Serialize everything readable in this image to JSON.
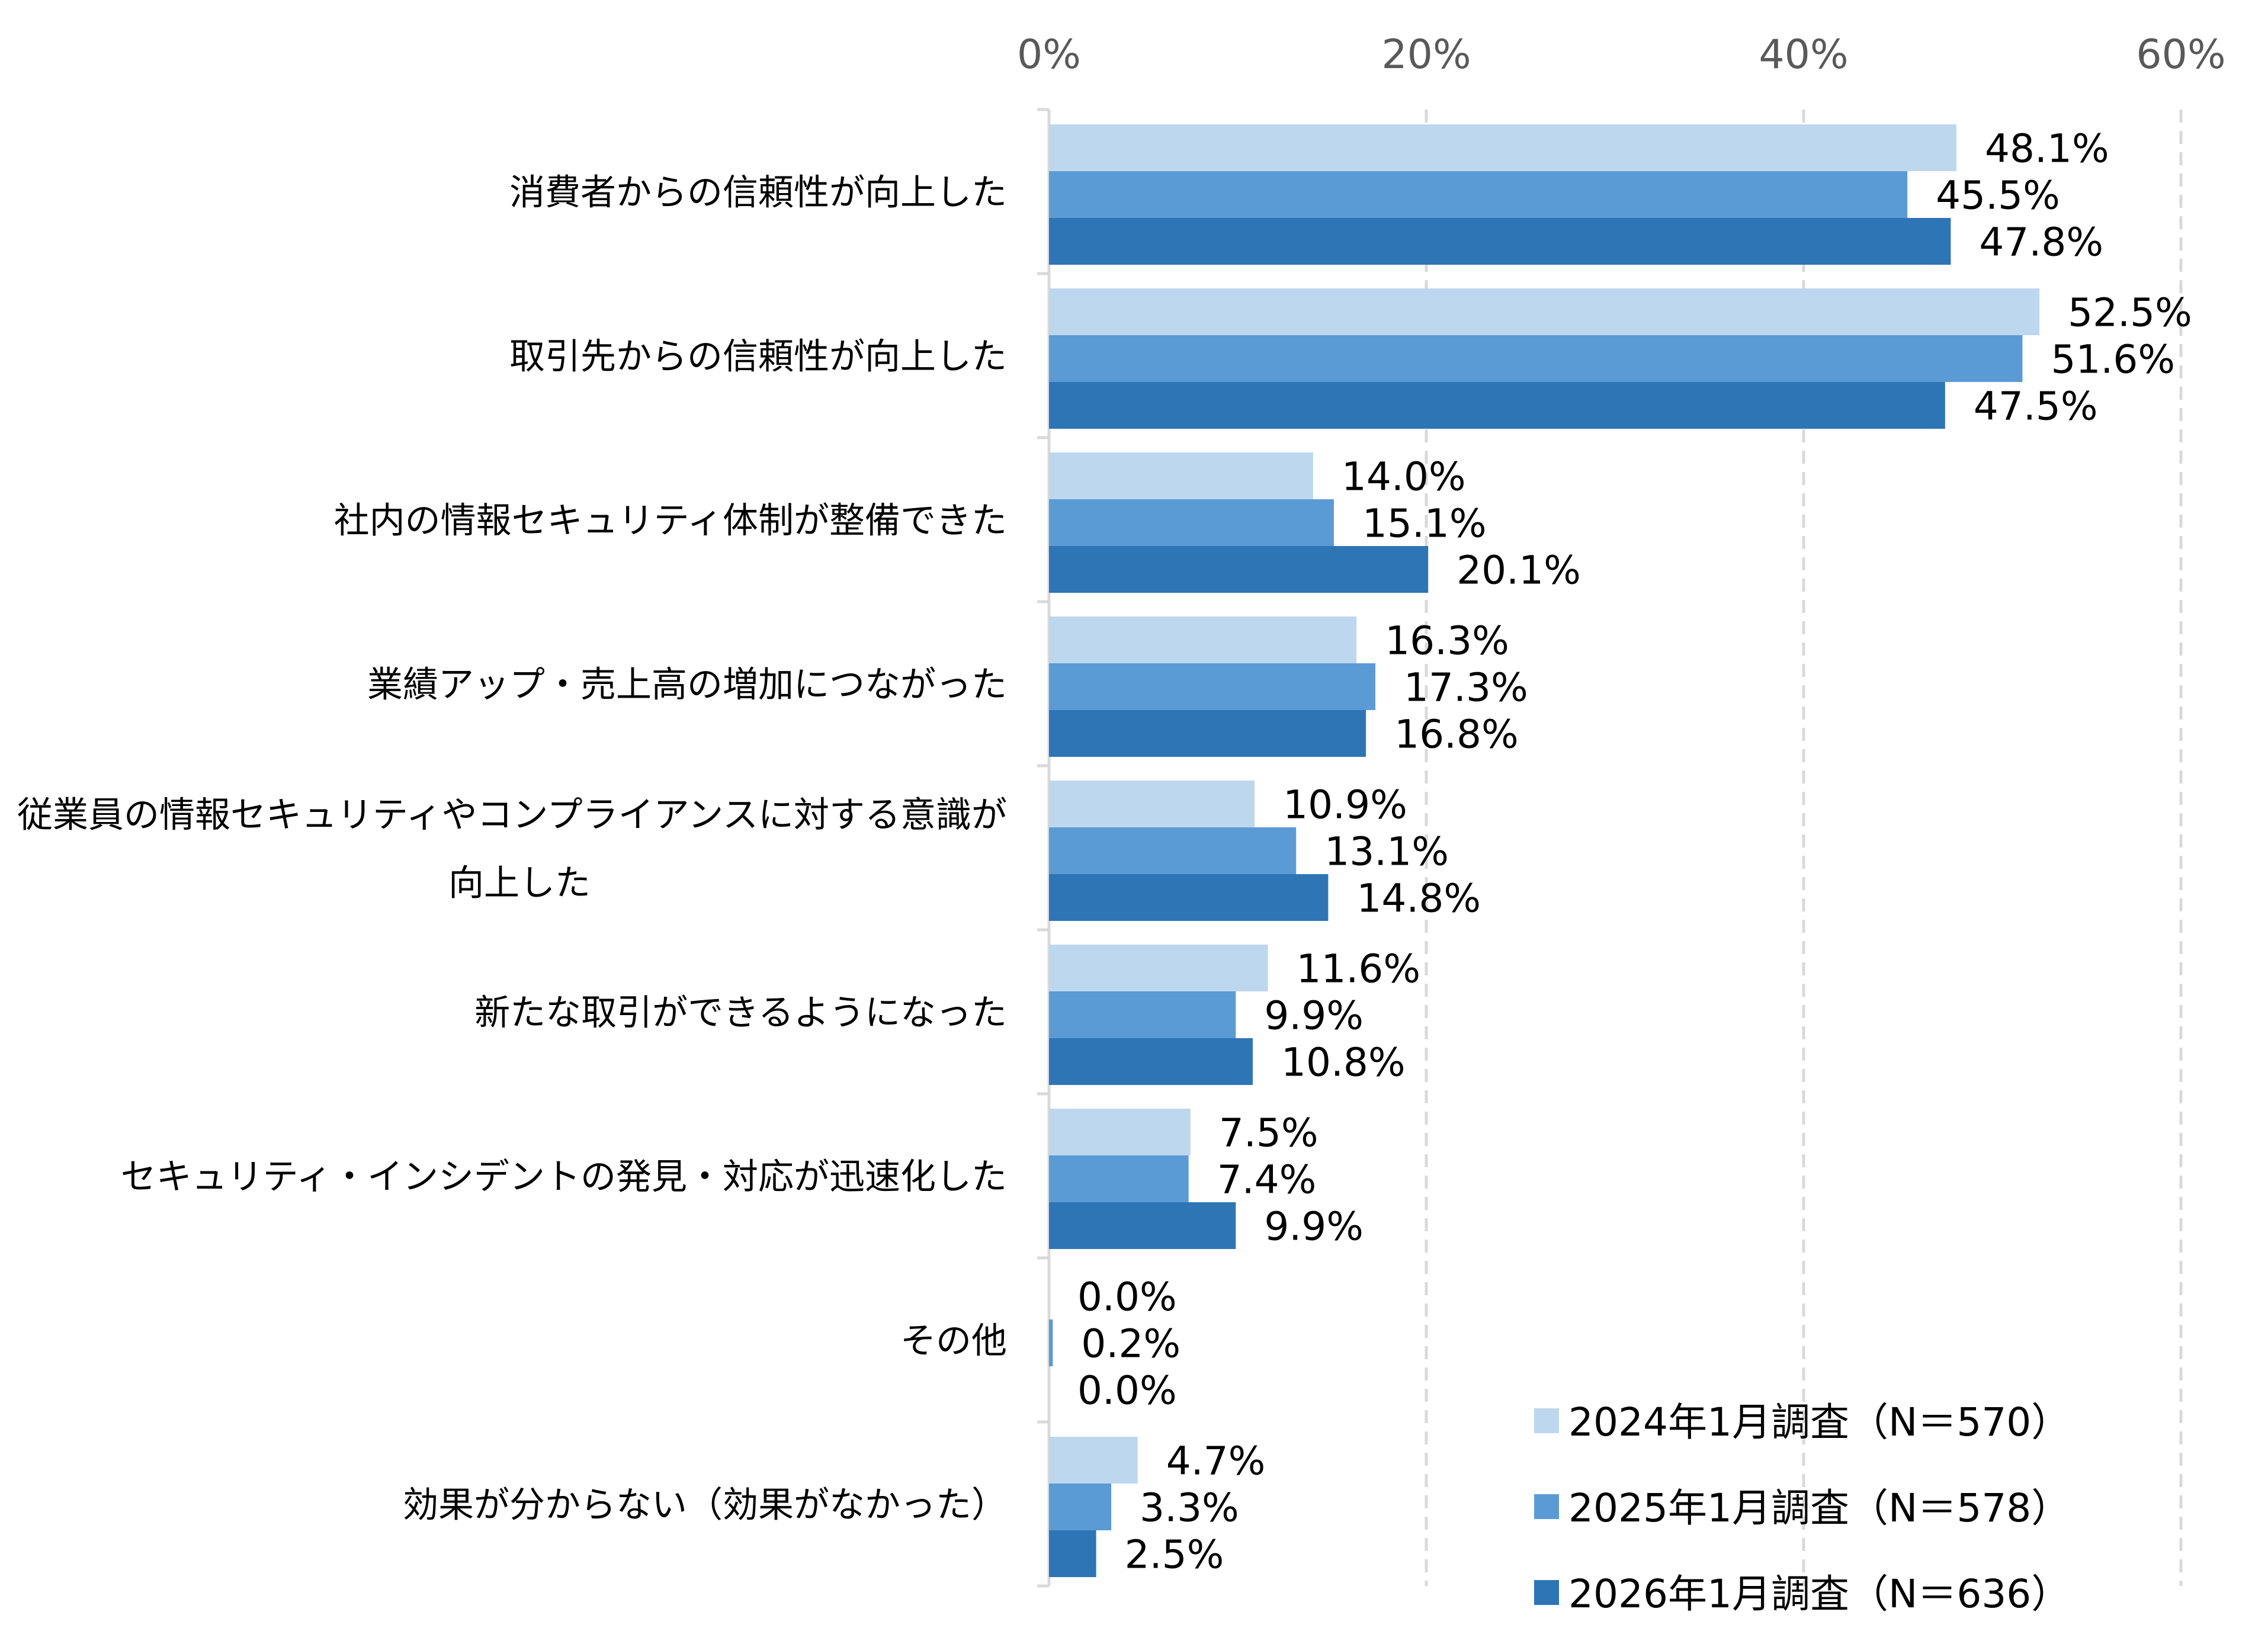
{
  "chart_data": {
    "type": "bar",
    "orientation": "horizontal",
    "categories": [
      [
        "消費者からの信頼性が向上した"
      ],
      [
        "取引先からの信頼性が向上した"
      ],
      [
        "社内の情報セキュリティ体制が整備できた"
      ],
      [
        "業績アップ・売上高の増加につながった"
      ],
      [
        "従業員の情報セキュリティやコンプライアンスに対する意識が",
        "向上した"
      ],
      [
        "新たな取引ができるようになった"
      ],
      [
        "セキュリティ・インシデントの発見・対応が迅速化した"
      ],
      [
        "その他"
      ],
      [
        "効果が分からない（効果がなかった）"
      ]
    ],
    "series": [
      {
        "name": "2024年1月調査（N＝570）",
        "color": "#BDD7EE",
        "values": [
          48.1,
          52.5,
          14.0,
          16.3,
          10.9,
          11.6,
          7.5,
          0.0,
          4.7
        ]
      },
      {
        "name": "2025年1月調査（N＝578）",
        "color": "#5B9BD5",
        "values": [
          45.5,
          51.6,
          15.1,
          17.3,
          13.1,
          9.9,
          7.4,
          0.2,
          3.3
        ]
      },
      {
        "name": "2026年1月調査（N＝636）",
        "color": "#2E75B6",
        "values": [
          47.8,
          47.5,
          20.1,
          16.8,
          14.8,
          10.8,
          9.9,
          0.0,
          2.5
        ]
      }
    ],
    "xlim": [
      0,
      60
    ],
    "xticks": [
      "0%",
      "20%",
      "40%",
      "60%"
    ],
    "xtick_values": [
      0,
      20,
      40,
      60
    ],
    "axis_position": "top",
    "grid": "vertical dashed",
    "legend_placement": "bottom-right",
    "value_format": "percent, 1 decimal"
  }
}
